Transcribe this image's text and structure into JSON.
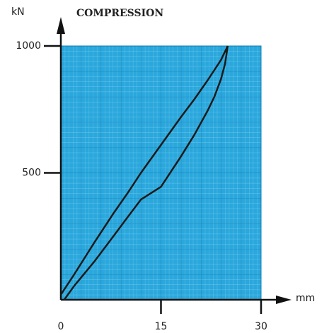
{
  "chart_data": {
    "type": "line",
    "title": "COMPRESSION",
    "x_label": "mm",
    "y_label": "kN",
    "series": [
      {
        "color": "#1a1a1a",
        "x": [
          0,
          2,
          5,
          8,
          10,
          12,
          15,
          18,
          20,
          22,
          24,
          25
        ],
        "values": [
          20,
          100,
          225,
          345,
          420,
          500,
          610,
          720,
          790,
          865,
          945,
          1000
        ]
      },
      {
        "color": "#1a1a1a",
        "x": [
          0.5,
          2,
          5,
          8,
          10,
          12,
          15,
          18,
          20,
          22,
          23,
          24,
          24.6,
          25
        ],
        "values": [
          0,
          55,
          150,
          255,
          325,
          395,
          445,
          565,
          650,
          745,
          800,
          870,
          930,
          1000
        ]
      }
    ],
    "xlim": [
      0,
      30
    ],
    "ylim": [
      0,
      1000
    ],
    "xticks": [
      0,
      15,
      30
    ],
    "yticks": [
      500,
      1000
    ]
  }
}
